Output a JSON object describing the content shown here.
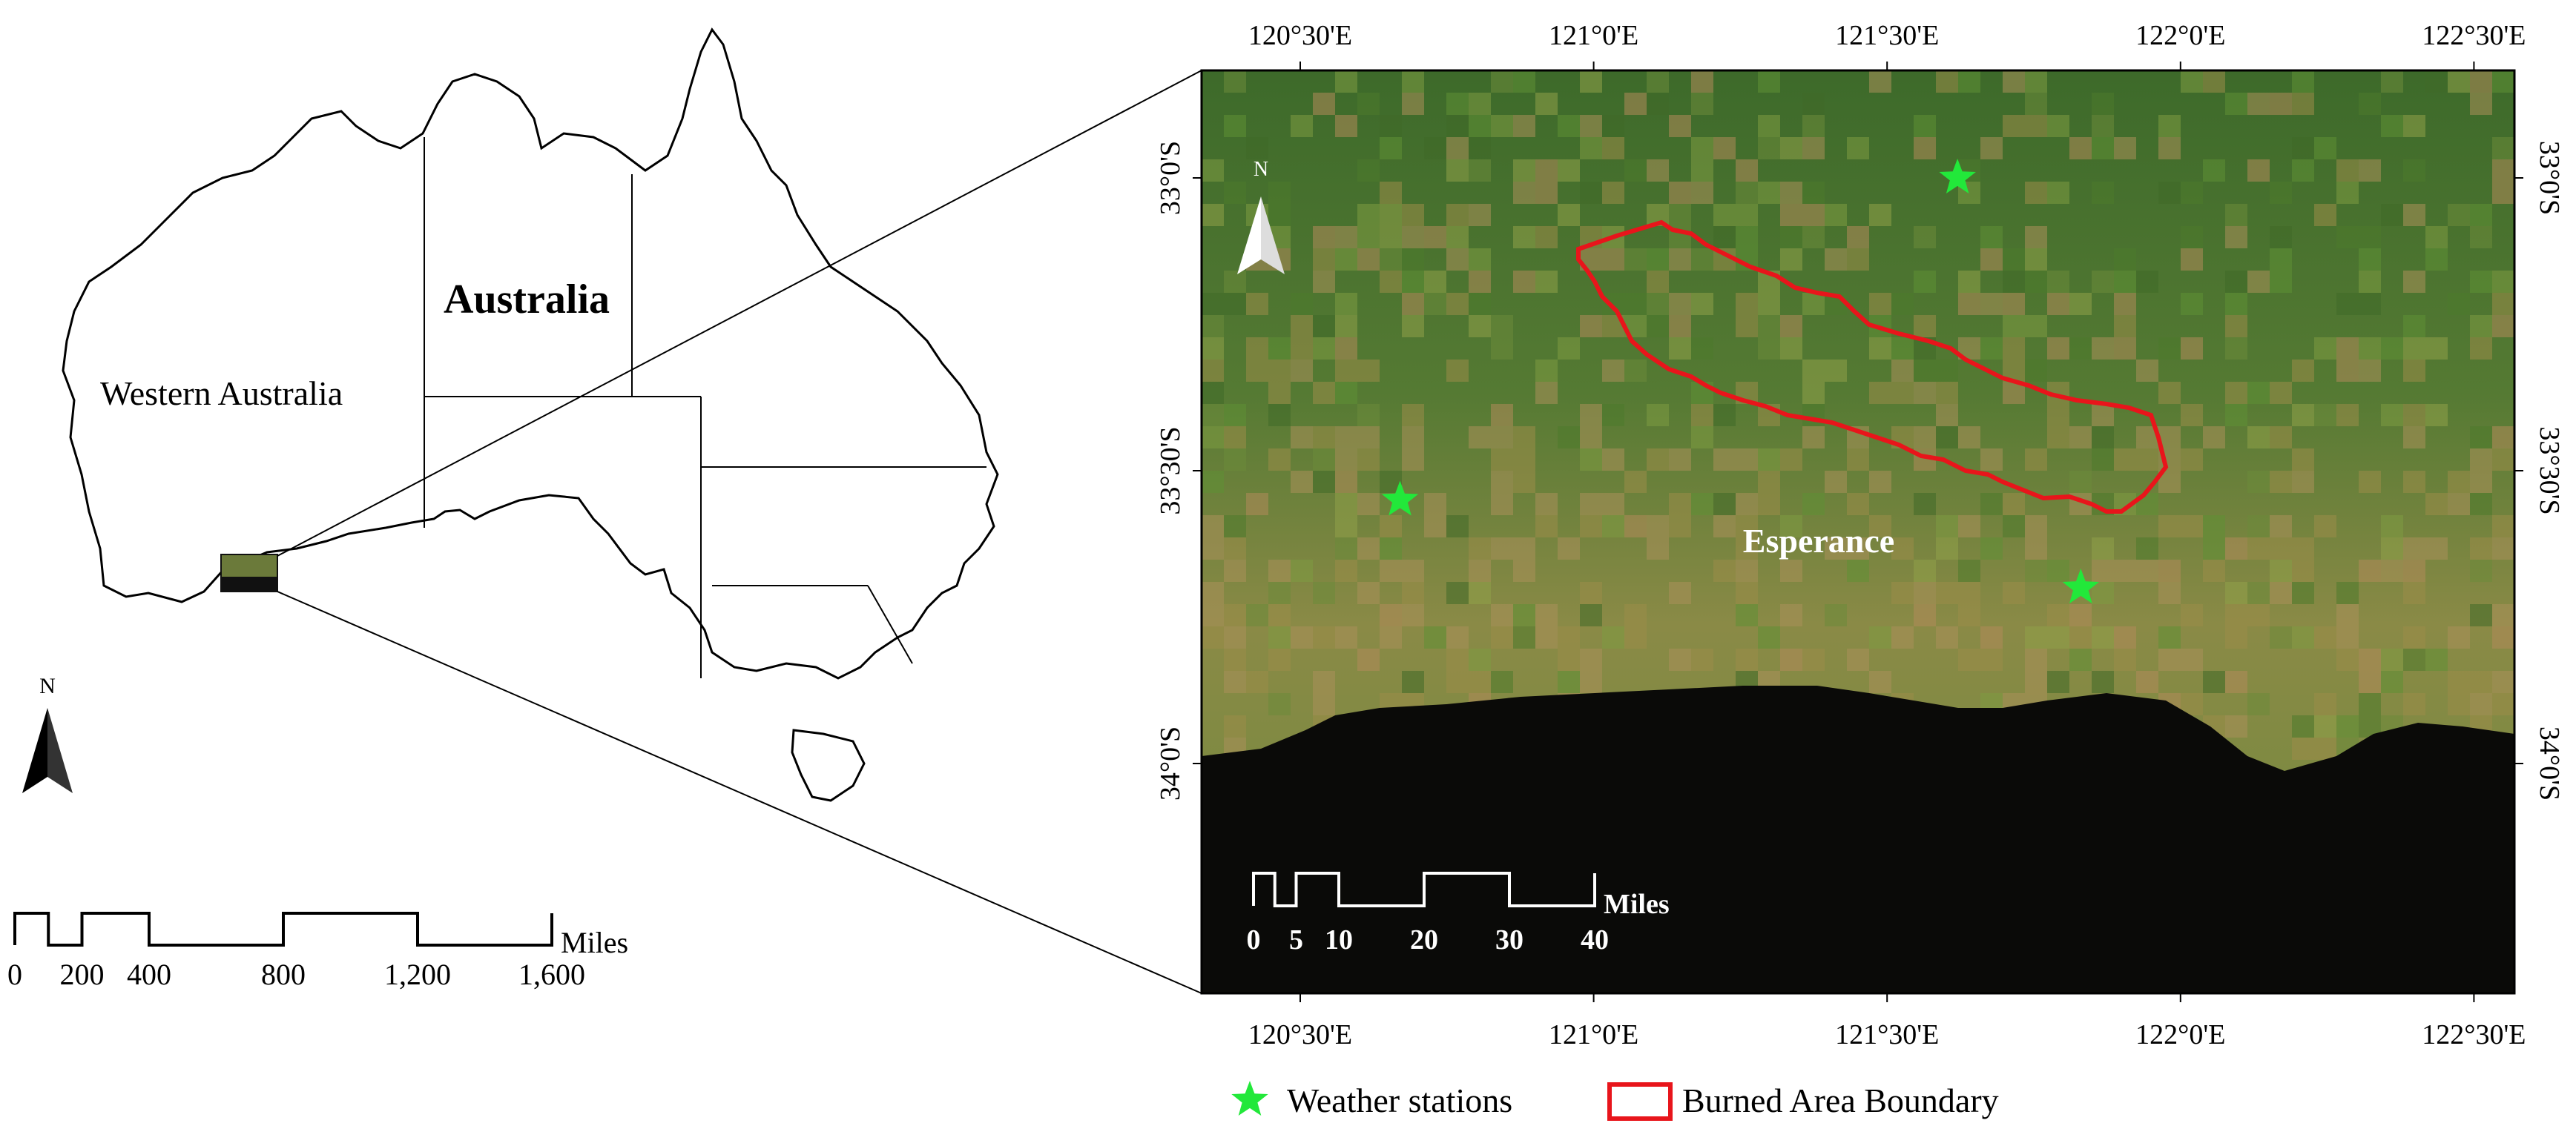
{
  "overview_map": {
    "country_label": "Australia",
    "state_label": "Western Australia",
    "north_label": "N",
    "scale_bar": {
      "ticks": [
        "0",
        "200",
        "400",
        "800",
        "1,200",
        "1,600"
      ],
      "unit": "Miles"
    }
  },
  "detail_map": {
    "place_label": "Esperance",
    "north_label": "N",
    "top_ticks": [
      "120°30'E",
      "121°0'E",
      "121°30'E",
      "122°0'E",
      "122°30'E"
    ],
    "bottom_ticks": [
      "120°30'E",
      "121°0'E",
      "121°30'E",
      "122°0'E",
      "122°30'E"
    ],
    "left_ticks": [
      "33°0'S",
      "33°30'S",
      "34°0'S"
    ],
    "right_ticks": [
      "33°0'S",
      "33°30'S",
      "34°0'S"
    ],
    "scale_bar": {
      "ticks": [
        "0",
        "5",
        "10",
        "20",
        "30",
        "40"
      ],
      "unit": "Miles"
    },
    "stations": [
      {
        "lon": 121.62,
        "lat": -33.0
      },
      {
        "lon": 120.67,
        "lat": -33.55
      },
      {
        "lon": 121.83,
        "lat": -33.7
      }
    ]
  },
  "legend": {
    "stations_label": "Weather stations",
    "burned_label": "Burned Area Boundary",
    "station_color": "#22e83a",
    "burned_color": "#e8151b"
  }
}
